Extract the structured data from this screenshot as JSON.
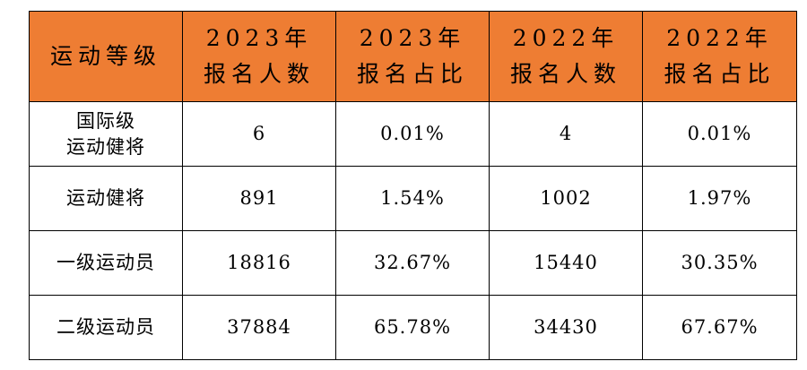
{
  "table": {
    "headers": [
      {
        "lines": [
          "运动等级"
        ]
      },
      {
        "lines": [
          "2023年",
          "报名人数"
        ]
      },
      {
        "lines": [
          "2023年",
          "报名占比"
        ]
      },
      {
        "lines": [
          "2022年",
          "报名人数"
        ]
      },
      {
        "lines": [
          "2022年",
          "报名占比"
        ]
      }
    ],
    "rows": [
      {
        "level": [
          "国际级",
          "运动健将"
        ],
        "count_2023": "6",
        "share_2023": "0.01%",
        "count_2022": "4",
        "share_2022": "0.01%"
      },
      {
        "level": [
          "运动健将"
        ],
        "count_2023": "891",
        "share_2023": "1.54%",
        "count_2022": "1002",
        "share_2022": "1.97%"
      },
      {
        "level": [
          "一级运动员"
        ],
        "count_2023": "18816",
        "share_2023": "32.67%",
        "count_2022": "15440",
        "share_2022": "30.35%"
      },
      {
        "level": [
          "二级运动员"
        ],
        "count_2023": "37884",
        "share_2023": "65.78%",
        "count_2022": "34430",
        "share_2022": "67.67%"
      }
    ],
    "colors": {
      "header_background": "#ee7d33",
      "border": "#000000",
      "text": "#000000"
    }
  }
}
